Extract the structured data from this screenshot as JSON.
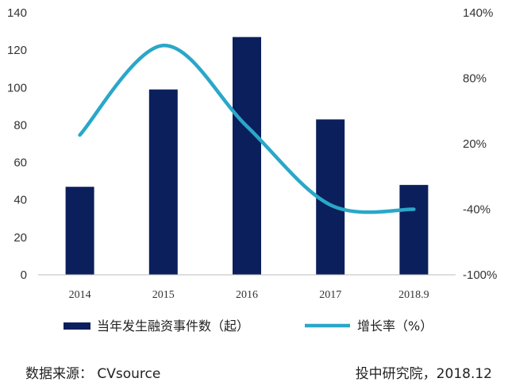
{
  "chart_data": {
    "type": "bar",
    "categories": [
      "2014",
      "2015",
      "2016",
      "2017",
      "2018.9"
    ],
    "series": [
      {
        "name": "当年发生融资事件数（起）",
        "type": "bar",
        "axis": "left",
        "color": "#0b1f5c",
        "values": [
          47,
          99,
          127,
          83,
          48
        ]
      },
      {
        "name": "增长率（%）",
        "type": "line",
        "axis": "right",
        "color": "#2aa7c9",
        "smooth": true,
        "values": [
          28,
          110,
          36,
          -36,
          -40
        ]
      }
    ],
    "yleft": {
      "min": 0,
      "max": 140,
      "ticks": [
        "0",
        "20",
        "40",
        "60",
        "80",
        "100",
        "120",
        "140"
      ]
    },
    "yright": {
      "min": -100,
      "max": 140,
      "ticks": [
        "-100%",
        "-40%",
        "20%",
        "80%",
        "140%"
      ]
    },
    "grid": false,
    "legend_position": "bottom"
  },
  "footer": {
    "source": "数据来源：  CVsource",
    "credit": "投中研究院，2018.12"
  }
}
